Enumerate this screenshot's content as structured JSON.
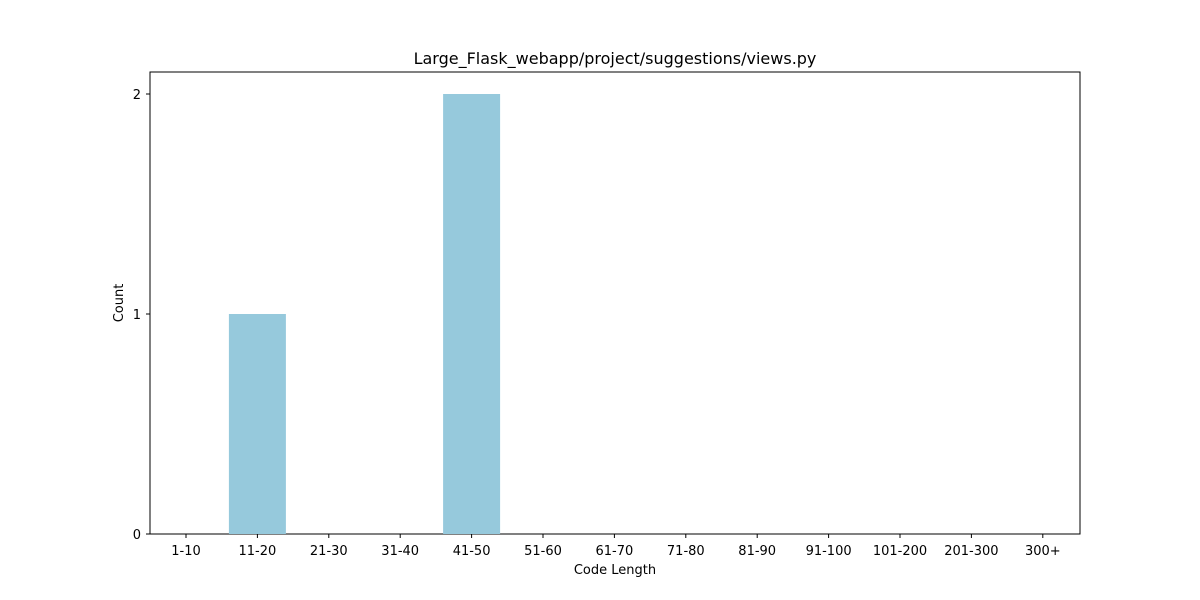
{
  "chart_data": {
    "type": "bar",
    "title": "Large_Flask_webapp/project/suggestions/views.py",
    "xlabel": "Code Length",
    "ylabel": "Count",
    "categories": [
      "1-10",
      "11-20",
      "21-30",
      "31-40",
      "41-50",
      "51-60",
      "61-70",
      "71-80",
      "81-90",
      "91-100",
      "101-200",
      "201-300",
      "300+"
    ],
    "values": [
      0,
      1,
      0,
      0,
      2,
      0,
      0,
      0,
      0,
      0,
      0,
      0,
      0
    ],
    "ylim": [
      0,
      2.1
    ],
    "yticks": [
      0,
      1,
      2
    ],
    "grid": false,
    "bar_color": "#96c9dc"
  }
}
